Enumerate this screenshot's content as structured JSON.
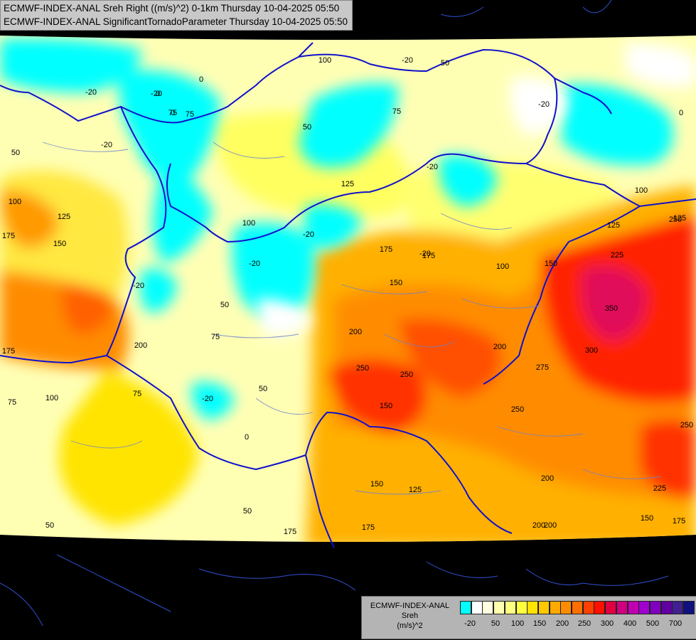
{
  "header": {
    "line1": "ECMWF-INDEX-ANAL Sreh Right ((m/s)^2) 0-1km Thursday 10-04-2025 05:50",
    "line2": "ECMWF-INDEX-ANAL SignificantTornadoParameter Thursday 10-04-2025 05:50"
  },
  "legend": {
    "model": "ECMWF-INDEX-ANAL",
    "parameter": "Sreh",
    "unit": "(m/s)^2",
    "colors": [
      "#00ffff",
      "#ffffff",
      "#ffffe0",
      "#ffffb0",
      "#ffff80",
      "#ffff40",
      "#ffe400",
      "#ffc800",
      "#ffaa00",
      "#ff8c00",
      "#ff6e00",
      "#ff4000",
      "#ff1000",
      "#e00040",
      "#d00080",
      "#c000b0",
      "#a000d0",
      "#8000c0",
      "#6000a0",
      "#402090",
      "#101080"
    ],
    "ticks": [
      "-20",
      "50",
      "100",
      "150",
      "200",
      "250",
      "300",
      "400",
      "500",
      "700"
    ]
  },
  "contour_labels": [
    {
      "text": "0"
    },
    {
      "text": "-20"
    },
    {
      "text": "-20"
    },
    {
      "text": "-20"
    },
    {
      "text": "0"
    },
    {
      "text": "75"
    },
    {
      "text": "50"
    },
    {
      "text": "0"
    },
    {
      "text": "50"
    },
    {
      "text": "75"
    },
    {
      "text": "-20"
    },
    {
      "text": "0"
    },
    {
      "text": "50"
    },
    {
      "text": "-20"
    },
    {
      "text": "100"
    },
    {
      "text": "125"
    },
    {
      "text": "150"
    },
    {
      "text": "175"
    },
    {
      "text": "125"
    },
    {
      "text": "-20"
    },
    {
      "text": "175"
    },
    {
      "text": "125"
    },
    {
      "text": "125"
    },
    {
      "text": "175"
    },
    {
      "text": "150"
    },
    {
      "text": "100"
    },
    {
      "text": "150"
    },
    {
      "text": "225"
    },
    {
      "text": "250"
    },
    {
      "text": "350"
    },
    {
      "text": "300"
    },
    {
      "text": "275"
    },
    {
      "text": "200"
    },
    {
      "text": "200"
    },
    {
      "text": "250"
    },
    {
      "text": "250"
    },
    {
      "text": "250"
    },
    {
      "text": "200"
    },
    {
      "text": "150"
    },
    {
      "text": "125"
    },
    {
      "text": "175"
    },
    {
      "text": "175"
    },
    {
      "text": "200"
    },
    {
      "text": "200"
    },
    {
      "text": "225"
    },
    {
      "text": "150"
    },
    {
      "text": "175"
    },
    {
      "text": "50"
    },
    {
      "text": "50"
    },
    {
      "text": "75"
    },
    {
      "text": "100"
    },
    {
      "text": "75"
    },
    {
      "text": "75"
    },
    {
      "text": "50"
    },
    {
      "text": "0"
    },
    {
      "text": "-20"
    },
    {
      "text": "100"
    },
    {
      "text": "-20"
    },
    {
      "text": "50"
    },
    {
      "text": "75"
    },
    {
      "text": "-20"
    },
    {
      "text": "200"
    },
    {
      "text": "175"
    },
    {
      "text": "250"
    },
    {
      "text": "100"
    },
    {
      "text": "100"
    },
    {
      "text": "-20"
    },
    {
      "text": "-20"
    },
    {
      "text": "150"
    }
  ]
}
